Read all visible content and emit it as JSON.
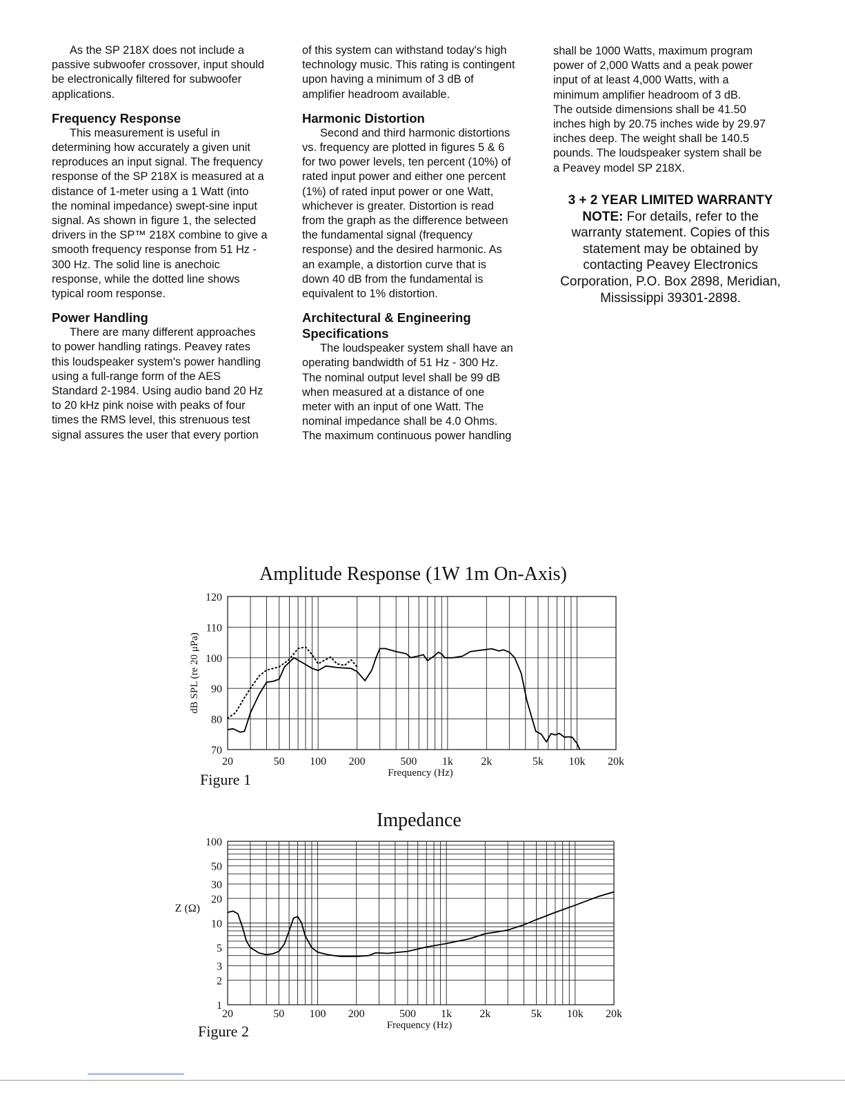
{
  "columns": [
    [
      {
        "type": "p",
        "lines": [
          "As the SP 218X does not include a",
          "passive subwoofer crossover, input should",
          "be electronically filtered for subwoofer",
          "applications."
        ]
      },
      {
        "type": "h",
        "lines": [
          "Frequency Response"
        ]
      },
      {
        "type": "p",
        "lines": [
          "This measurement is useful in",
          "determining how accurately a given unit",
          "reproduces an input signal. The frequency",
          "response of the SP 218X is measured at a",
          "distance of 1-meter using a 1 Watt (into",
          "the nominal impedance) swept-sine input",
          "signal. As shown in figure 1, the selected",
          "drivers in the SP™ 218X combine to give a",
          "smooth frequency response from 51 Hz -",
          "300 Hz. The solid line is anechoic",
          "response, while the dotted line shows",
          "typical room response."
        ]
      },
      {
        "type": "h",
        "lines": [
          "Power Handling"
        ]
      },
      {
        "type": "p",
        "lines": [
          "There are many different approaches",
          "to power handling ratings. Peavey rates",
          "this loudspeaker system's power handling",
          "using a full-range form of the AES",
          "Standard 2-1984. Using audio band 20 Hz",
          "to 20 kHz pink noise with peaks of four",
          "times the RMS level, this strenuous test",
          "signal assures the user that every portion"
        ]
      }
    ],
    [
      {
        "type": "c",
        "lines": [
          "of this system can withstand today's high",
          "technology music. This rating is contingent",
          "upon having a minimum of 3 dB of",
          "amplifier headroom available."
        ]
      },
      {
        "type": "h",
        "lines": [
          "Harmonic Distortion"
        ]
      },
      {
        "type": "p",
        "lines": [
          "Second and third harmonic distortions",
          "vs. frequency are plotted in figures 5 & 6",
          "for two power levels, ten percent (10%) of",
          "rated input power and either one percent",
          "(1%) of rated input power or one Watt,",
          "whichever is greater. Distortion is read",
          "from the graph as the difference between",
          "the fundamental signal (frequency",
          "response) and the desired harmonic. As",
          "an example, a distortion curve that is",
          "down 40 dB from the fundamental is",
          "equivalent to 1% distortion."
        ]
      },
      {
        "type": "h",
        "lines": [
          "Architectural & Engineering",
          "Specifications"
        ]
      },
      {
        "type": "p",
        "lines": [
          "The loudspeaker system shall have an",
          "operating bandwidth of 51 Hz - 300 Hz.",
          "The nominal output level shall be 99 dB",
          "when measured at a distance of one",
          "meter with an input of one Watt. The",
          "nominal impedance shall be 4.0 Ohms.",
          "The maximum continuous power handling"
        ]
      }
    ],
    [
      {
        "type": "c",
        "lines": [
          "shall be 1000 Watts, maximum program",
          "power of 2,000 Watts and a peak power",
          "input of at least 4,000 Watts, with a",
          "minimum amplifier headroom of 3 dB.",
          "The outside dimensions shall be 41.50",
          "inches high by 20.75 inches wide by 29.97",
          "inches deep. The weight shall be 140.5",
          "pounds. The loudspeaker system shall be",
          "a Peavey model SP 218X."
        ]
      }
    ]
  ],
  "warranty": {
    "title": "3 + 2 YEAR LIMITED WARRANTY",
    "note_label": "NOTE:",
    "first_line": " For details, refer to the",
    "lines": [
      "warranty statement. Copies of this",
      "statement may be obtained by",
      "contacting Peavey Electronics",
      "Corporation, P.O. Box 2898, Meridian,",
      "Mississippi 39301-2898."
    ]
  },
  "figures": [
    "Figure 1",
    "Figure 2"
  ],
  "chart_data": [
    {
      "type": "line",
      "title": "Amplitude Response   (1W 1m  On-Axis)",
      "xlabel": "Frequency (Hz)",
      "ylabel": "dB SPL (re 20 μPa)",
      "x_scale": "log",
      "xlim": [
        20,
        20000
      ],
      "ylim": [
        70,
        120
      ],
      "x_tick_values": [
        20,
        50,
        100,
        200,
        500,
        1000,
        2000,
        5000,
        10000,
        20000
      ],
      "x_tick_labels": [
        "20",
        "50",
        "100",
        "200",
        "500",
        "1k",
        "2k",
        "5k",
        "10k",
        "20k"
      ],
      "y_tick_values": [
        120,
        110,
        100,
        90,
        80,
        70
      ],
      "y_tick_labels": [
        "120",
        "110",
        "100",
        "90",
        "80",
        "70"
      ],
      "grid": true,
      "series": [
        {
          "style": "solid",
          "x": [
            20,
            22,
            25,
            27,
            30,
            35,
            40,
            45,
            50,
            55,
            65,
            75,
            90,
            100,
            115,
            140,
            180,
            200,
            230,
            260,
            280,
            300,
            330,
            400,
            480,
            520,
            600,
            650,
            700,
            800,
            850,
            900,
            950,
            1100,
            1300,
            1500,
            2000,
            2200,
            2500,
            2700,
            3000,
            3300,
            3700,
            4100,
            4400,
            4800,
            5300,
            5800,
            6300,
            6800,
            7300,
            8000,
            8500,
            9200,
            10000,
            10500
          ],
          "y": [
            76.5,
            76.8,
            75.7,
            76,
            82,
            88,
            92,
            92.3,
            93,
            97,
            100,
            98.5,
            96.5,
            95.8,
            97.3,
            96.8,
            96.5,
            95.5,
            92.5,
            96,
            100,
            103,
            103,
            102,
            101.3,
            100,
            100.6,
            101,
            99,
            100.8,
            101.8,
            101.2,
            100,
            100,
            100.5,
            102,
            102.7,
            102.9,
            102.2,
            102.6,
            101.8,
            100,
            95,
            86,
            81.5,
            76,
            75,
            72.5,
            75.2,
            74.8,
            75.3,
            74,
            74.2,
            74,
            72,
            70
          ]
        },
        {
          "style": "dotted",
          "x": [
            20,
            23,
            27,
            30,
            35,
            40,
            45,
            50,
            60,
            70,
            80,
            90,
            100,
            110,
            125,
            140,
            160,
            180,
            200
          ],
          "y": [
            80.3,
            82,
            87,
            90,
            94,
            96,
            96.5,
            97,
            99.5,
            103,
            103.5,
            101,
            98,
            99,
            100.2,
            98,
            97.5,
            99.3,
            97
          ]
        }
      ]
    },
    {
      "type": "line",
      "title": "Impedance",
      "xlabel": "Frequency (Hz)",
      "ylabel": "Z (Ω)",
      "x_scale": "log",
      "y_scale": "log",
      "xlim": [
        20,
        20000
      ],
      "ylim": [
        1,
        100
      ],
      "x_tick_values": [
        20,
        50,
        100,
        200,
        500,
        1000,
        2000,
        5000,
        10000,
        20000
      ],
      "x_tick_labels": [
        "20",
        "50",
        "100",
        "200",
        "500",
        "1k",
        "2k",
        "5k",
        "10k",
        "20k"
      ],
      "y_tick_values": [
        100,
        50,
        30,
        20,
        10,
        5,
        3,
        2,
        1
      ],
      "y_tick_labels": [
        "100",
        "50",
        "30",
        "20",
        "10",
        "5",
        "3",
        "2",
        "1"
      ],
      "grid": true,
      "series": [
        {
          "style": "solid",
          "x": [
            20,
            22,
            24,
            26,
            28,
            30,
            35,
            40,
            45,
            50,
            55,
            60,
            65,
            70,
            75,
            80,
            90,
            100,
            120,
            150,
            200,
            250,
            280,
            300,
            350,
            500,
            600,
            700,
            1000,
            1500,
            2000,
            2500,
            3000,
            4000,
            5000,
            7000,
            10000,
            15000,
            20000
          ],
          "y": [
            13.5,
            14,
            13,
            9,
            6,
            5,
            4.3,
            4.1,
            4.2,
            4.5,
            5.5,
            8,
            11.5,
            12,
            10,
            7,
            5,
            4.4,
            4.1,
            3.9,
            3.9,
            4.0,
            4.3,
            4.3,
            4.25,
            4.5,
            4.8,
            5.1,
            5.6,
            6.4,
            7.4,
            7.8,
            8.2,
            9.5,
            11,
            13.5,
            16.5,
            21,
            24
          ]
        }
      ]
    }
  ]
}
